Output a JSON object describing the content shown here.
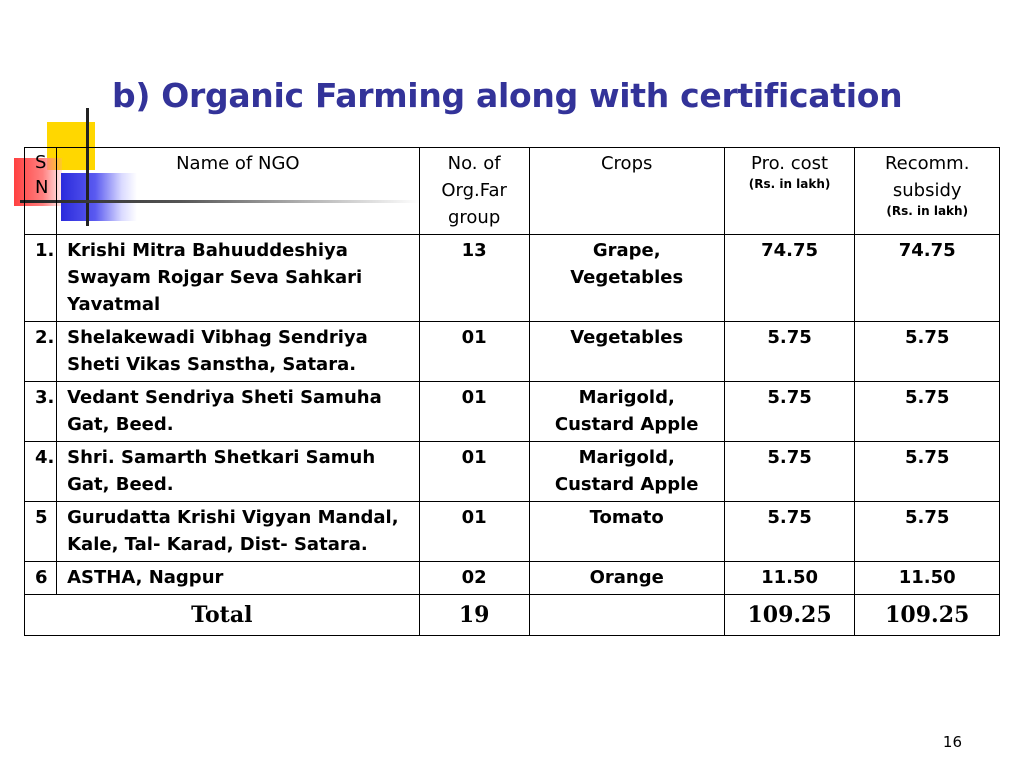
{
  "slide": {
    "title": "b) Organic Farming along with certification",
    "page_number": "16"
  },
  "table": {
    "headers": {
      "sn": "S N",
      "name": "Name of NGO",
      "no_of_groups": "No. of Org.Far group",
      "crops": "Crops",
      "pro_cost": "Pro. cost",
      "pro_cost_unit": "(Rs. in lakh)",
      "subsidy": "Recomm. subsidy",
      "subsidy_unit": "(Rs. in lakh)"
    },
    "rows": [
      {
        "sn": "1.",
        "name": "Krishi Mitra Bahuuddeshiya Swayam Rojgar Seva Sahkari Yavatmal",
        "groups": "13",
        "crops": "Grape, Vegetables",
        "cost": "74.75",
        "subsidy": "74.75"
      },
      {
        "sn": "2.",
        "name": "Shelakewadi Vibhag Sendriya Sheti Vikas Sanstha, Satara.",
        "groups": "01",
        "crops": "Vegetables",
        "cost": "5.75",
        "subsidy": "5.75"
      },
      {
        "sn": "3.",
        "name": "Vedant Sendriya Sheti Samuha Gat, Beed.",
        "groups": "01",
        "crops": "Marigold, Custard Apple",
        "cost": "5.75",
        "subsidy": "5.75"
      },
      {
        "sn": "4.",
        "name": "Shri. Samarth Shetkari Samuh Gat, Beed.",
        "groups": "01",
        "crops": "Marigold, Custard Apple",
        "cost": "5.75",
        "subsidy": "5.75"
      },
      {
        "sn": "5",
        "name": "Gurudatta Krishi Vigyan Mandal, Kale, Tal- Karad, Dist- Satara.",
        "groups": "01",
        "crops": "Tomato",
        "cost": "5.75",
        "subsidy": "5.75"
      },
      {
        "sn": "6",
        "name": "ASTHA, Nagpur",
        "groups": "02",
        "crops": "Orange",
        "cost": "11.50",
        "subsidy": "11.50"
      }
    ],
    "total": {
      "label": "Total",
      "groups": "19",
      "crops": "",
      "cost": "109.25",
      "subsidy": "109.25"
    }
  },
  "colors": {
    "title": "#333399",
    "deco_yellow": "#ffd700",
    "deco_red": "#ff4040",
    "deco_blue": "#2b2bdc"
  }
}
